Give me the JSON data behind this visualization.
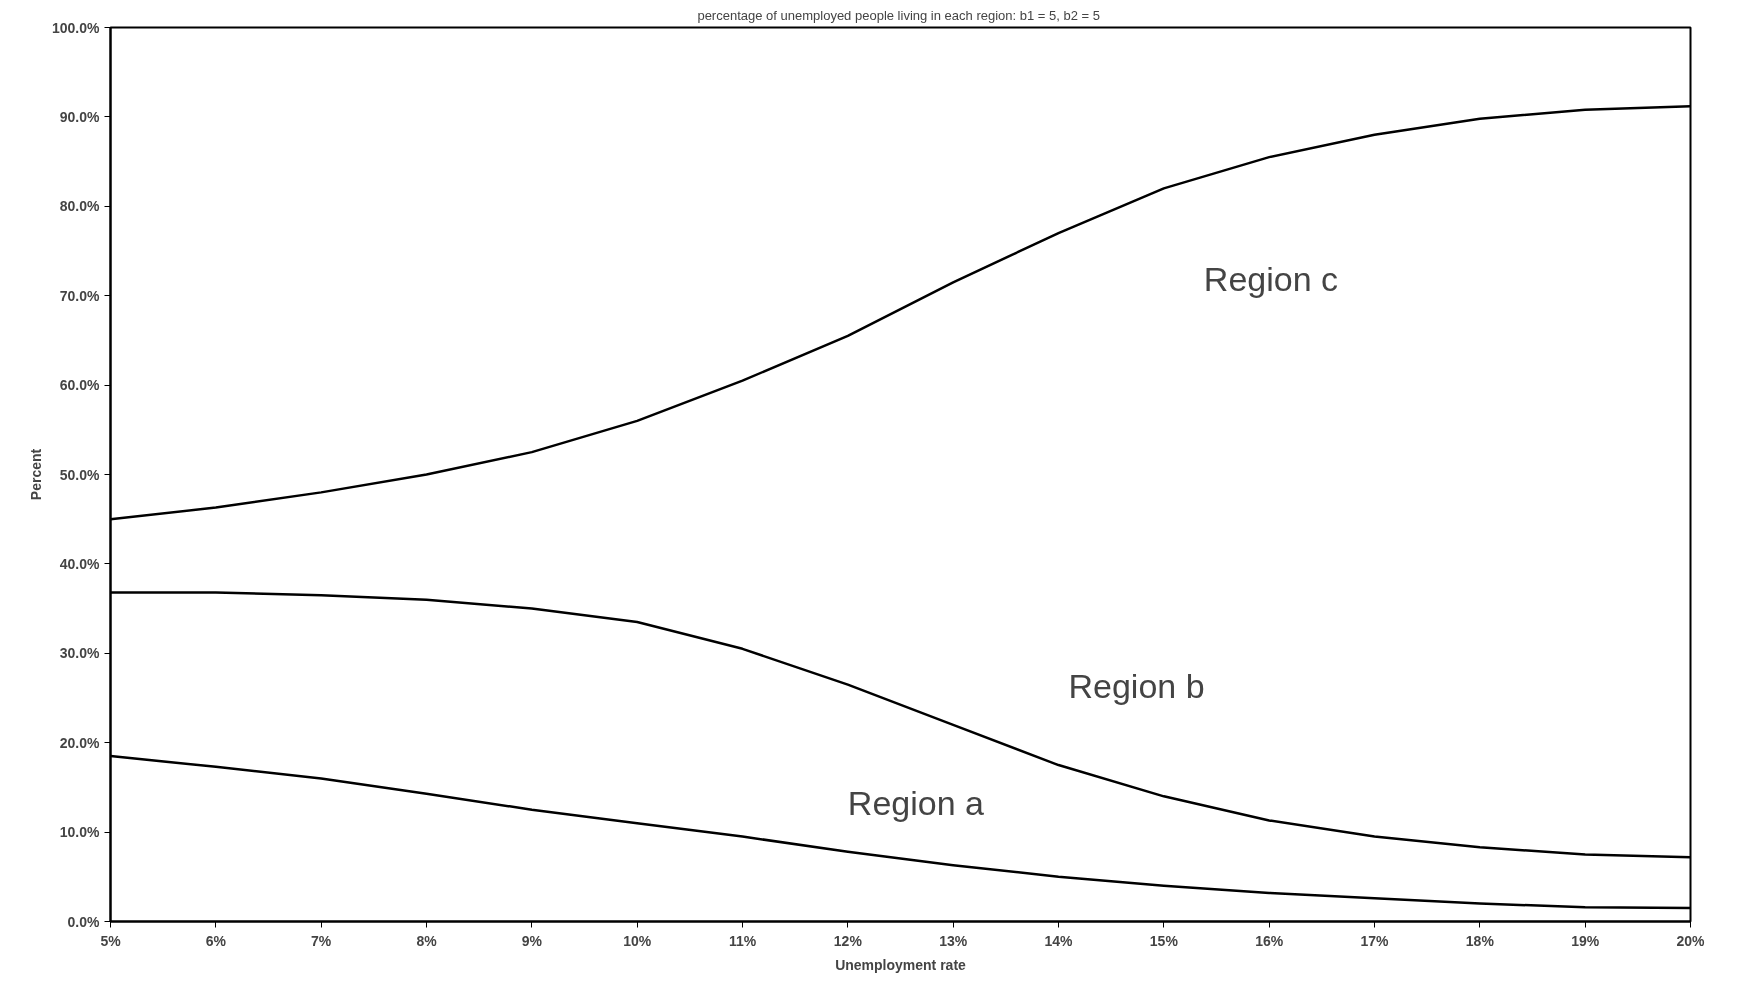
{
  "chart_data": {
    "type": "line",
    "title": "percentage of unemployed people living in each region:  b1 = 5, b2 = 5",
    "xlabel": "Unemployment rate",
    "ylabel": "Percent",
    "x": [
      5,
      6,
      7,
      8,
      9,
      10,
      11,
      12,
      13,
      14,
      15,
      16,
      17,
      18,
      19,
      20
    ],
    "series": [
      {
        "name": "Region a",
        "color": "#000000",
        "values": [
          18.5,
          17.3,
          16,
          14.3,
          12.5,
          11,
          9.5,
          7.8,
          6.3,
          5,
          4,
          3.2,
          2.6,
          2,
          1.6,
          1.5
        ]
      },
      {
        "name": "Region b",
        "color": "#000000",
        "values": [
          36.8,
          36.8,
          36.5,
          36,
          35,
          33.5,
          30.5,
          26.5,
          22,
          17.5,
          14,
          11.3,
          9.5,
          8.3,
          7.5,
          7.2
        ]
      },
      {
        "name": "Region c",
        "color": "#000000",
        "values": [
          45,
          46.3,
          48,
          50,
          52.5,
          56,
          60.5,
          65.5,
          71.5,
          77,
          82,
          85.5,
          88,
          89.8,
          90.8,
          91.2
        ]
      }
    ],
    "xlim": [
      5,
      20
    ],
    "ylim": [
      0,
      100
    ],
    "xticks": [
      {
        "value": 5,
        "label": "5%"
      },
      {
        "value": 6,
        "label": "6%"
      },
      {
        "value": 7,
        "label": "7%"
      },
      {
        "value": 8,
        "label": "8%"
      },
      {
        "value": 9,
        "label": "9%"
      },
      {
        "value": 10,
        "label": "10%"
      },
      {
        "value": 11,
        "label": "11%"
      },
      {
        "value": 12,
        "label": "12%"
      },
      {
        "value": 13,
        "label": "13%"
      },
      {
        "value": 14,
        "label": "14%"
      },
      {
        "value": 15,
        "label": "15%"
      },
      {
        "value": 16,
        "label": "16%"
      },
      {
        "value": 17,
        "label": "17%"
      },
      {
        "value": 18,
        "label": "18%"
      },
      {
        "value": 19,
        "label": "19%"
      },
      {
        "value": 20,
        "label": "20%"
      }
    ],
    "yticks": [
      {
        "value": 0,
        "label": "0.0%"
      },
      {
        "value": 10,
        "label": "10.0%"
      },
      {
        "value": 20,
        "label": "20.0%"
      },
      {
        "value": 30,
        "label": "30.0%"
      },
      {
        "value": 40,
        "label": "40.0%"
      },
      {
        "value": 50,
        "label": "50.0%"
      },
      {
        "value": 60,
        "label": "60.0%"
      },
      {
        "value": 70,
        "label": "70.0%"
      },
      {
        "value": 80,
        "label": "80.0%"
      },
      {
        "value": 90,
        "label": "90.0%"
      },
      {
        "value": 100,
        "label": "100.0%"
      }
    ],
    "grid": false,
    "marker": "none",
    "line_style": "solid"
  }
}
